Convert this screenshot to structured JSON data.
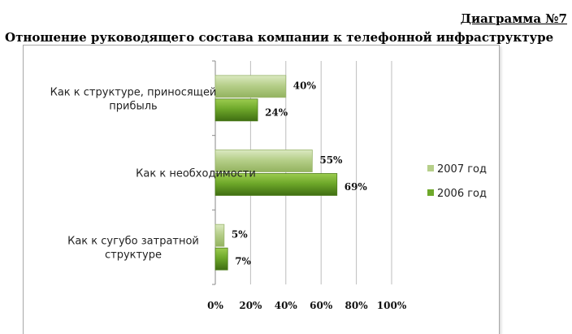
{
  "diagram_label": "Диаграмма №7",
  "chart_data": {
    "type": "bar",
    "orientation": "horizontal",
    "title": "Отношение руководящего состава компании к телефонной инфраструктуре",
    "categories": [
      [
        "Как к структуре, приносящей",
        "прибыль"
      ],
      [
        "Как к необходимости"
      ],
      [
        "Как к сугубо затратной",
        "структуре"
      ]
    ],
    "series": [
      {
        "name": "2007 год",
        "values": [
          40,
          55,
          5
        ],
        "color": "#b6cf8a"
      },
      {
        "name": "2006 год",
        "values": [
          24,
          69,
          7
        ],
        "color": "#6ea82a"
      }
    ],
    "value_suffix": "%",
    "xlim": [
      0,
      100
    ],
    "x_ticks": [
      0,
      20,
      40,
      60,
      80,
      100
    ],
    "grid": "vertical",
    "legend_position": "right"
  }
}
